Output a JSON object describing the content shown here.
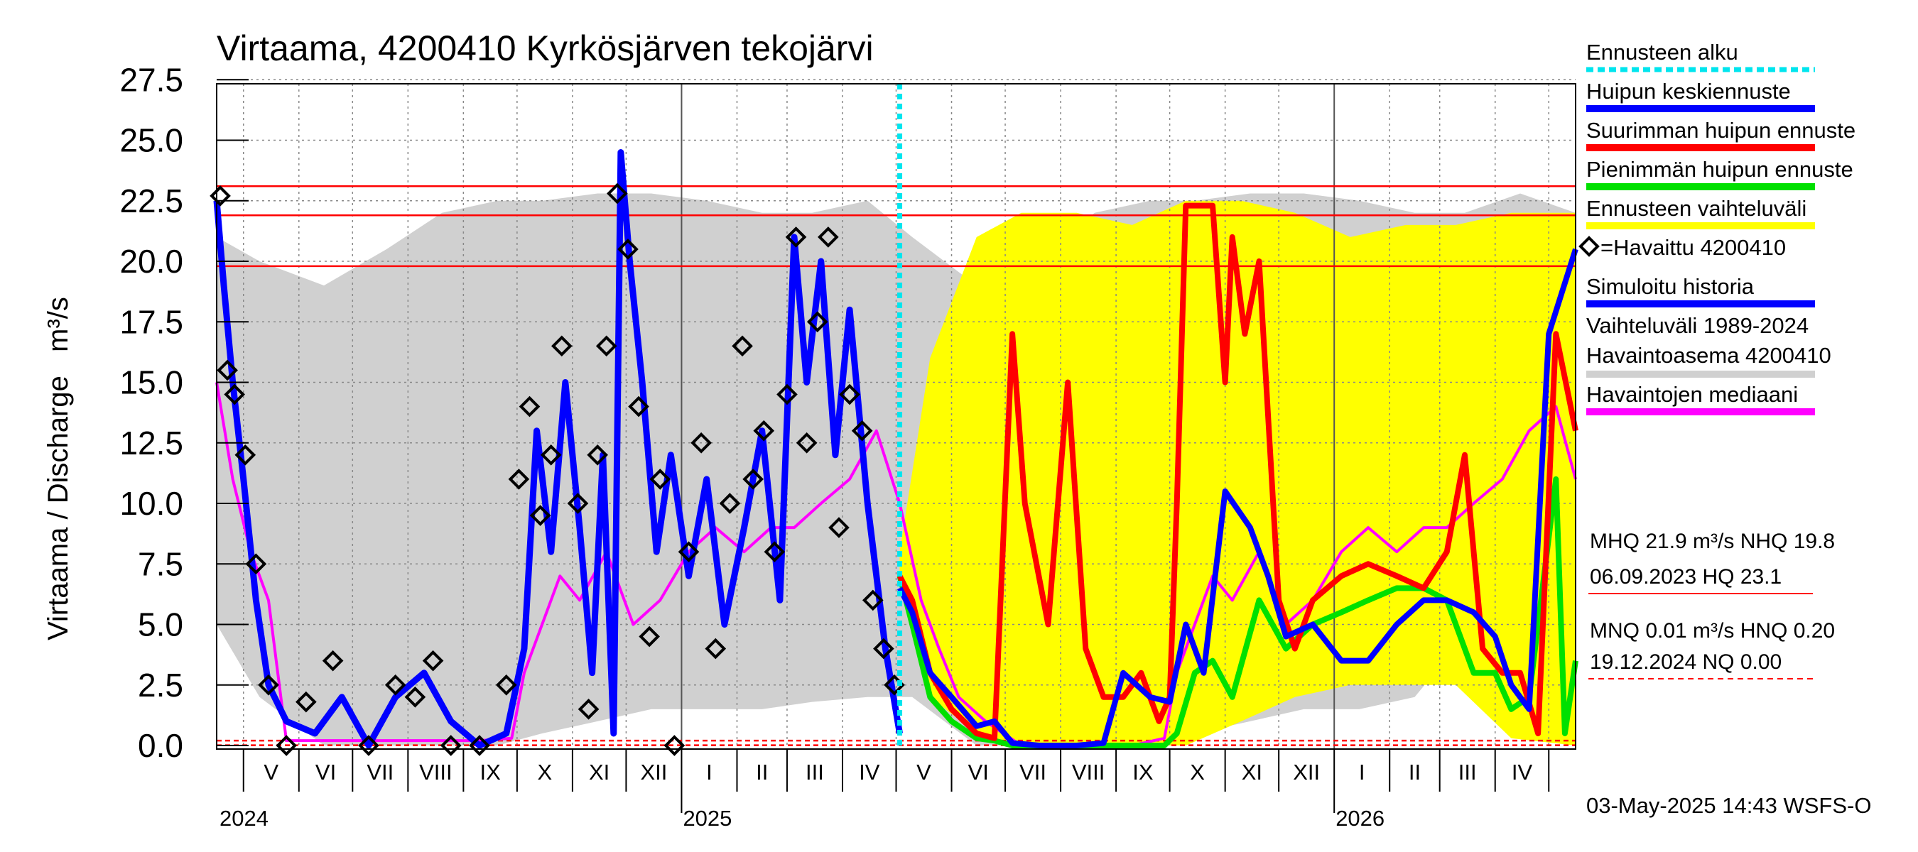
{
  "chart_data": {
    "type": "line",
    "title": "Virtaama, 4200410 Kyrkösjärven tekojärvi",
    "ylabel": "Virtaama / Discharge   m³/s",
    "ylim": [
      0,
      27.5
    ],
    "yticks": [
      "0.0",
      "2.5",
      "5.0",
      "7.5",
      "10.0",
      "12.5",
      "15.0",
      "17.5",
      "20.0",
      "22.5",
      "25.0",
      "27.5"
    ],
    "x_start": "2024-04-16",
    "x_end": "2026-05-16",
    "forecast_start": "2025-05-03",
    "months": [
      {
        "label": "V",
        "date": "2024-05-01"
      },
      {
        "label": "VI",
        "date": "2024-06-01"
      },
      {
        "label": "VII",
        "date": "2024-07-01"
      },
      {
        "label": "VIII",
        "date": "2024-08-01"
      },
      {
        "label": "IX",
        "date": "2024-09-01"
      },
      {
        "label": "X",
        "date": "2024-10-01"
      },
      {
        "label": "XI",
        "date": "2024-11-01"
      },
      {
        "label": "XII",
        "date": "2024-12-01"
      },
      {
        "label": "I",
        "date": "2025-01-01"
      },
      {
        "label": "II",
        "date": "2025-02-01"
      },
      {
        "label": "III",
        "date": "2025-03-01"
      },
      {
        "label": "IV",
        "date": "2025-04-01"
      },
      {
        "label": "V",
        "date": "2025-05-01"
      },
      {
        "label": "VI",
        "date": "2025-06-01"
      },
      {
        "label": "VII",
        "date": "2025-07-01"
      },
      {
        "label": "VIII",
        "date": "2025-08-01"
      },
      {
        "label": "IX",
        "date": "2025-09-01"
      },
      {
        "label": "X",
        "date": "2025-10-01"
      },
      {
        "label": "XI",
        "date": "2025-11-01"
      },
      {
        "label": "XII",
        "date": "2025-12-01"
      },
      {
        "label": "I",
        "date": "2026-01-01"
      },
      {
        "label": "II",
        "date": "2026-02-01"
      },
      {
        "label": "III",
        "date": "2026-03-01"
      },
      {
        "label": "IV",
        "date": "2026-04-01"
      },
      {
        "label": "",
        "date": "2026-05-01"
      }
    ],
    "years": [
      {
        "label": "2024",
        "date": "2024-04-20"
      },
      {
        "label": "2025",
        "date": "2025-01-01"
      },
      {
        "label": "2026",
        "date": "2026-01-01"
      }
    ],
    "reference_lines": [
      {
        "name": "HQ",
        "value": 23.1,
        "color": "#ff0000",
        "style": "solid"
      },
      {
        "name": "MHQ",
        "value": 21.9,
        "color": "#ff0000",
        "style": "solid"
      },
      {
        "name": "NHQ",
        "value": 19.8,
        "color": "#ff0000",
        "style": "solid"
      },
      {
        "name": "MNQ",
        "value": 0.01,
        "color": "#ff0000",
        "style": "dashed"
      },
      {
        "name": "HNQ",
        "value": 0.2,
        "color": "#ff0000",
        "style": "dashed"
      }
    ],
    "series": [
      {
        "name": "Vaihteluväli 1989-2024 Havaintoasema 4200410",
        "color": "#d0d0d0",
        "kind": "band",
        "x": [
          "2024-04-16",
          "2024-05-10",
          "2024-06-15",
          "2024-07-20",
          "2024-08-20",
          "2024-09-20",
          "2024-10-15",
          "2024-11-15",
          "2024-12-15",
          "2025-01-15",
          "2025-02-15",
          "2025-03-15",
          "2025-04-15",
          "2025-05-10",
          "2025-06-15",
          "2025-07-20",
          "2025-08-20",
          "2025-09-20",
          "2025-10-15",
          "2025-11-15",
          "2025-12-15",
          "2026-01-15",
          "2026-02-15",
          "2026-03-15",
          "2026-04-15",
          "2026-05-16"
        ],
        "lower": [
          5,
          2,
          0,
          0,
          0,
          0,
          0.5,
          1,
          1.5,
          1.5,
          1.5,
          1.8,
          2,
          2,
          0,
          0,
          0,
          0,
          0.5,
          1,
          1.5,
          1.5,
          2,
          4.5,
          3,
          1.5
        ],
        "upper": [
          21,
          20,
          19,
          20.5,
          22,
          22.5,
          22.5,
          22.8,
          22.8,
          22.5,
          22,
          22,
          22.5,
          21,
          19,
          20,
          22,
          22.5,
          22.5,
          22.8,
          22.8,
          22.5,
          22,
          22,
          22.8,
          22
        ]
      },
      {
        "name": "Ennusteen vaihteluväli",
        "color": "#ffff00",
        "kind": "band",
        "x": [
          "2025-05-03",
          "2025-05-20",
          "2025-06-15",
          "2025-07-10",
          "2025-08-10",
          "2025-09-10",
          "2025-10-10",
          "2025-11-10",
          "2025-12-10",
          "2026-01-10",
          "2026-02-10",
          "2026-03-10",
          "2026-04-10",
          "2026-05-16"
        ],
        "lower": [
          7,
          2,
          0.5,
          0,
          0,
          0,
          0,
          1,
          2,
          2.5,
          2.5,
          2.5,
          0.3,
          0
        ],
        "upper": [
          8,
          16,
          21,
          22,
          22,
          21.5,
          22.5,
          22.5,
          22,
          21,
          21.5,
          21.5,
          22,
          22
        ]
      },
      {
        "name": "Havaittu 4200410",
        "color": "#000000",
        "kind": "points",
        "x": [
          "2024-04-18",
          "2024-04-22",
          "2024-04-26",
          "2024-05-02",
          "2024-05-08",
          "2024-05-15",
          "2024-05-25",
          "2024-06-05",
          "2024-06-20",
          "2024-07-10",
          "2024-07-25",
          "2024-08-05",
          "2024-08-15",
          "2024-08-25",
          "2024-09-10",
          "2024-09-25",
          "2024-10-02",
          "2024-10-08",
          "2024-10-14",
          "2024-10-20",
          "2024-10-26",
          "2024-11-04",
          "2024-11-10",
          "2024-11-15",
          "2024-11-20",
          "2024-11-26",
          "2024-12-02",
          "2024-12-08",
          "2024-12-14",
          "2024-12-20",
          "2024-12-28",
          "2025-01-05",
          "2025-01-12",
          "2025-01-20",
          "2025-01-28",
          "2025-02-04",
          "2025-02-10",
          "2025-02-16",
          "2025-02-22",
          "2025-03-01",
          "2025-03-06",
          "2025-03-12",
          "2025-03-18",
          "2025-03-24",
          "2025-03-30",
          "2025-04-05",
          "2025-04-12",
          "2025-04-18",
          "2025-04-24",
          "2025-04-30"
        ],
        "values": [
          22.7,
          15.5,
          14.5,
          12,
          7.5,
          2.5,
          0,
          1.8,
          3.5,
          0,
          2.5,
          2,
          3.5,
          0,
          0,
          2.5,
          11,
          14,
          9.5,
          12,
          16.5,
          10,
          1.5,
          12,
          16.5,
          22.8,
          20.5,
          14,
          4.5,
          11,
          0,
          8,
          12.5,
          4,
          10,
          16.5,
          11,
          13,
          8,
          14.5,
          21,
          12.5,
          17.5,
          21,
          9,
          14.5,
          13,
          6,
          4,
          2.5
        ]
      },
      {
        "name": "Simuloitu historia",
        "color": "#0000ff",
        "kind": "line",
        "x": [
          "2024-04-16",
          "2024-04-20",
          "2024-04-25",
          "2024-05-01",
          "2024-05-08",
          "2024-05-15",
          "2024-05-25",
          "2024-06-10",
          "2024-06-25",
          "2024-07-10",
          "2024-07-25",
          "2024-08-10",
          "2024-08-25",
          "2024-09-10",
          "2024-09-25",
          "2024-10-05",
          "2024-10-12",
          "2024-10-20",
          "2024-10-28",
          "2024-11-05",
          "2024-11-12",
          "2024-11-18",
          "2024-11-24",
          "2024-11-28",
          "2024-12-03",
          "2024-12-10",
          "2024-12-18",
          "2024-12-26",
          "2025-01-05",
          "2025-01-15",
          "2025-01-25",
          "2025-02-05",
          "2025-02-15",
          "2025-02-25",
          "2025-03-05",
          "2025-03-12",
          "2025-03-20",
          "2025-03-28",
          "2025-04-05",
          "2025-04-15",
          "2025-04-25",
          "2025-05-03"
        ],
        "values": [
          22.5,
          19,
          15,
          11,
          6,
          2.5,
          1,
          0.5,
          2,
          0,
          2,
          3,
          1,
          0,
          0.5,
          4,
          13,
          8,
          15,
          9,
          3,
          12,
          0.5,
          24.5,
          20,
          15,
          8,
          12,
          7,
          11,
          5,
          9,
          13,
          6,
          21,
          15,
          20,
          12,
          18,
          10,
          4,
          0.5
        ]
      },
      {
        "name": "Havaintojen mediaani",
        "color": "#ff00ff",
        "kind": "line",
        "x": [
          "2024-04-16",
          "2024-04-25",
          "2024-05-05",
          "2024-05-15",
          "2024-05-25",
          "2024-06-10",
          "2024-07-10",
          "2024-08-10",
          "2024-09-10",
          "2024-09-28",
          "2024-10-05",
          "2024-10-15",
          "2024-10-25",
          "2024-11-05",
          "2024-11-20",
          "2024-12-05",
          "2024-12-20",
          "2025-01-05",
          "2025-01-20",
          "2025-02-05",
          "2025-02-20",
          "2025-03-05",
          "2025-03-20",
          "2025-04-05",
          "2025-04-20",
          "2025-05-03",
          "2025-05-15",
          "2025-05-25",
          "2025-06-05",
          "2025-06-20",
          "2025-07-10",
          "2025-08-10",
          "2025-09-10",
          "2025-09-28",
          "2025-10-05",
          "2025-10-15",
          "2025-10-25",
          "2025-11-05",
          "2025-11-20",
          "2025-12-05",
          "2025-12-20",
          "2026-01-05",
          "2026-01-20",
          "2026-02-05",
          "2026-02-20",
          "2026-03-05",
          "2026-03-20",
          "2026-04-05",
          "2026-04-20",
          "2026-05-05",
          "2026-05-16"
        ],
        "values": [
          15,
          11,
          8,
          6,
          0.2,
          0.2,
          0.2,
          0.2,
          0.2,
          0.3,
          3,
          5,
          7,
          6,
          8,
          5,
          6,
          8,
          9,
          8,
          9,
          9,
          10,
          11,
          13,
          10,
          6,
          4,
          2,
          1,
          0,
          0,
          0,
          0.3,
          3,
          5,
          7,
          6,
          8,
          5,
          6,
          8,
          9,
          8,
          9,
          9,
          10,
          11,
          13,
          14,
          11
        ]
      },
      {
        "name": "Huipun keskiennuste",
        "color": "#0000ff",
        "kind": "line",
        "x": [
          "2025-05-03",
          "2025-05-10",
          "2025-05-20",
          "2025-06-01",
          "2025-06-15",
          "2025-06-25",
          "2025-07-05",
          "2025-07-20",
          "2025-08-10",
          "2025-08-25",
          "2025-09-05",
          "2025-09-20",
          "2025-10-01",
          "2025-10-10",
          "2025-10-20",
          "2025-11-01",
          "2025-11-15",
          "2025-11-25",
          "2025-12-05",
          "2025-12-20",
          "2026-01-05",
          "2026-01-20",
          "2026-02-05",
          "2026-02-20",
          "2026-03-05",
          "2026-03-20",
          "2026-04-01",
          "2026-04-10",
          "2026-04-20",
          "2026-05-01",
          "2026-05-16"
        ],
        "values": [
          6.5,
          5.5,
          3,
          2,
          0.8,
          1,
          0.1,
          0,
          0,
          0.1,
          3,
          2,
          1.8,
          5,
          3,
          10.5,
          9,
          7,
          4.5,
          5,
          3.5,
          3.5,
          5,
          6,
          6,
          5.5,
          4.5,
          2.5,
          1.5,
          17,
          20.5
        ]
      },
      {
        "name": "Suurimman huipun ennuste",
        "color": "#ff0000",
        "kind": "line",
        "x": [
          "2025-05-03",
          "2025-05-10",
          "2025-05-20",
          "2025-06-01",
          "2025-06-15",
          "2025-06-25",
          "2025-07-05",
          "2025-07-12",
          "2025-07-25",
          "2025-08-05",
          "2025-08-15",
          "2025-08-25",
          "2025-09-05",
          "2025-09-15",
          "2025-09-25",
          "2025-10-01",
          "2025-10-05",
          "2025-10-10",
          "2025-10-25",
          "2025-11-01",
          "2025-11-05",
          "2025-11-12",
          "2025-11-20",
          "2025-12-01",
          "2025-12-10",
          "2025-12-20",
          "2026-01-05",
          "2026-01-20",
          "2026-02-05",
          "2026-02-20",
          "2026-03-05",
          "2026-03-15",
          "2026-03-25",
          "2026-04-05",
          "2026-04-15",
          "2026-04-25",
          "2026-05-05",
          "2026-05-16"
        ],
        "values": [
          7,
          6,
          3,
          1.5,
          0.5,
          0.3,
          17,
          10,
          5,
          15,
          4,
          2,
          2,
          3,
          1,
          2,
          10,
          22.3,
          22.3,
          15,
          21,
          17,
          20,
          6,
          4,
          6,
          7,
          7.5,
          7,
          6.5,
          8,
          12,
          4,
          3,
          3,
          0.5,
          17,
          13
        ]
      },
      {
        "name": "Pienimmän huipun ennuste",
        "color": "#00e000",
        "kind": "line",
        "x": [
          "2025-05-03",
          "2025-05-10",
          "2025-05-20",
          "2025-06-01",
          "2025-06-15",
          "2025-06-25",
          "2025-07-05",
          "2025-08-10",
          "2025-09-10",
          "2025-09-28",
          "2025-10-05",
          "2025-10-15",
          "2025-10-25",
          "2025-11-05",
          "2025-11-20",
          "2025-12-05",
          "2025-12-20",
          "2026-01-05",
          "2026-01-20",
          "2026-02-05",
          "2026-02-20",
          "2026-03-05",
          "2026-03-20",
          "2026-04-01",
          "2026-04-10",
          "2026-04-20",
          "2026-05-05",
          "2026-05-10",
          "2026-05-16"
        ],
        "values": [
          7,
          5,
          2,
          1,
          0.3,
          0.2,
          0,
          0,
          0,
          0,
          0.5,
          3,
          3.5,
          2,
          6,
          4,
          5,
          5.5,
          6,
          6.5,
          6.5,
          6,
          3,
          3,
          1.5,
          2,
          11,
          0.5,
          3.5
        ]
      }
    ],
    "legend": [
      {
        "label": "Ennusteen alku",
        "color": "#00e5ee",
        "style": "dotted"
      },
      {
        "label": "Huipun keskiennuste",
        "color": "#0000ff",
        "style": "solid"
      },
      {
        "label": "Suurimman huipun ennuste",
        "color": "#ff0000",
        "style": "solid"
      },
      {
        "label": "Pienimmän huipun ennuste",
        "color": "#00e000",
        "style": "solid"
      },
      {
        "label": "Ennusteen vaihteluväli",
        "color": "#ffff00",
        "style": "solid"
      },
      {
        "label": "=Havaittu 4200410",
        "color": "#000000",
        "style": "marker"
      },
      {
        "label": "Simuloitu historia",
        "color": "#0000ff",
        "style": "solid"
      },
      {
        "label": "Vaihteluväli 1989-2024",
        "label2": " Havaintoasema 4200410",
        "color": "#d0d0d0",
        "style": "solid"
      },
      {
        "label": "Havaintojen mediaani",
        "color": "#ff00ff",
        "style": "solid"
      }
    ],
    "stats": {
      "line1": "MHQ 21.9 m³/s NHQ 19.8",
      "line2": "06.09.2023 HQ 23.1",
      "line3": "MNQ 0.01 m³/s HNQ 0.20",
      "line4": "19.12.2024 NQ 0.00"
    },
    "footer": "03-May-2025 14:43 WSFS-O"
  }
}
